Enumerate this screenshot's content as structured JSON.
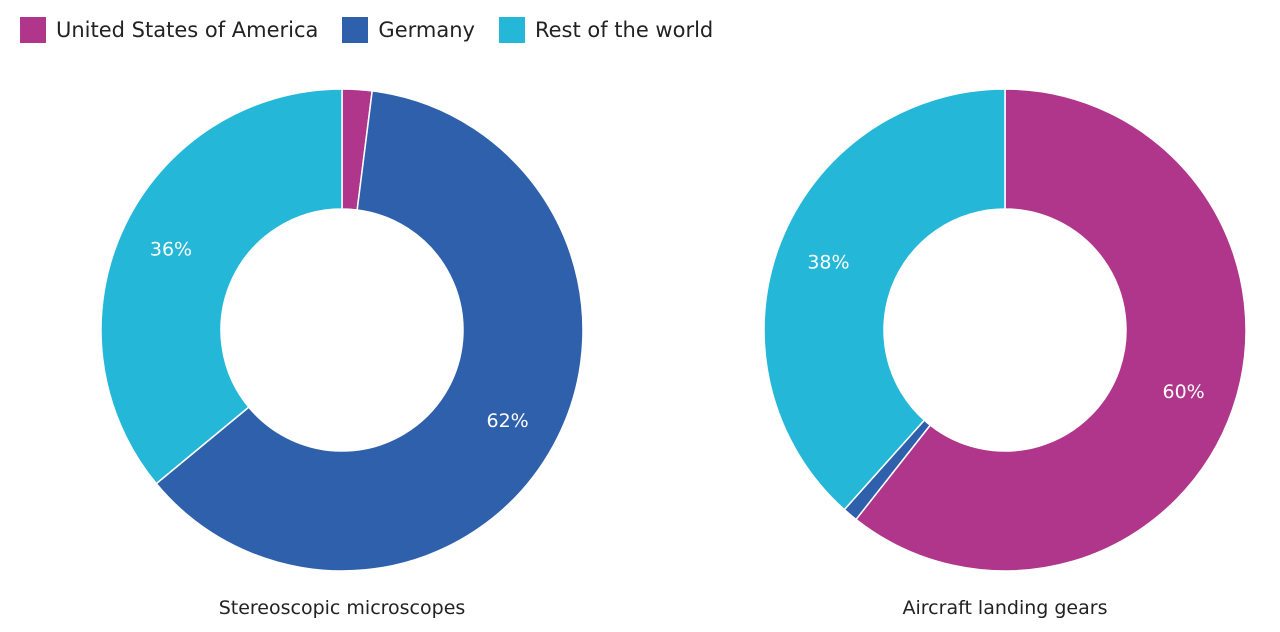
{
  "legend": {
    "position": "top-left",
    "items": [
      {
        "label": "United States of America",
        "color": "#b0368b"
      },
      {
        "label": "Germany",
        "color": "#2f60ac"
      },
      {
        "label": "Rest of the world",
        "color": "#24b7d7"
      }
    ]
  },
  "chart_data": [
    {
      "type": "pie",
      "donut": true,
      "title": "Stereoscopic microscopes",
      "categories": [
        "United States of America",
        "Germany",
        "Rest of the world"
      ],
      "values": [
        2,
        62,
        36
      ],
      "data_labels": [
        "",
        "62%",
        "36%"
      ],
      "colors": [
        "#b0368b",
        "#2f60ac",
        "#24b7d7"
      ],
      "unit": "%"
    },
    {
      "type": "pie",
      "donut": true,
      "title": "Aircraft landing gears",
      "categories": [
        "United States of America",
        "Germany",
        "Rest of the world"
      ],
      "values": [
        60,
        1,
        38
      ],
      "data_labels": [
        "60%",
        "",
        "38%"
      ],
      "colors": [
        "#b0368b",
        "#2f60ac",
        "#24b7d7"
      ],
      "unit": "%"
    }
  ]
}
